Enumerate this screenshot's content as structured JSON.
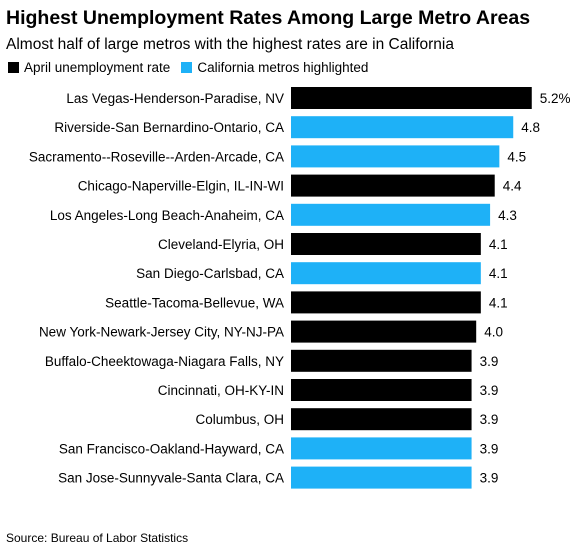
{
  "title": "Highest Unemployment Rates Among Large Metro Areas",
  "subtitle": "Almost half of large metros with the highest rates are in California",
  "legend": [
    {
      "label": "April unemployment rate",
      "color": "#000000"
    },
    {
      "label": "California metros highlighted",
      "color": "#1eb1f7"
    }
  ],
  "source": "Source: Bureau of Labor Statistics",
  "chart_data": {
    "type": "bar",
    "orientation": "horizontal",
    "value_suffix_first": "%",
    "xlim": [
      0,
      5.2
    ],
    "grid": false,
    "legend_position": "top-left",
    "colors": {
      "default": "#000000",
      "california": "#1eb1f7"
    },
    "categories": [
      "Las Vegas-Henderson-Paradise, NV",
      "Riverside-San Bernardino-Ontario, CA",
      "Sacramento--Roseville--Arden-Arcade, CA",
      "Chicago-Naperville-Elgin, IL-IN-WI",
      "Los Angeles-Long Beach-Anaheim, CA",
      "Cleveland-Elyria, OH",
      "San Diego-Carlsbad, CA",
      "Seattle-Tacoma-Bellevue, WA",
      "New York-Newark-Jersey City, NY-NJ-PA",
      "Buffalo-Cheektowaga-Niagara Falls, NY",
      "Cincinnati, OH-KY-IN",
      "Columbus, OH",
      "San Francisco-Oakland-Hayward, CA",
      "San Jose-Sunnyvale-Santa Clara, CA"
    ],
    "values": [
      5.2,
      4.8,
      4.5,
      4.4,
      4.3,
      4.1,
      4.1,
      4.1,
      4.0,
      3.9,
      3.9,
      3.9,
      3.9,
      3.9
    ],
    "value_labels": [
      "5.2%",
      "4.8",
      "4.5",
      "4.4",
      "4.3",
      "4.1",
      "4.1",
      "4.1",
      "4.0",
      "3.9",
      "3.9",
      "3.9",
      "3.9",
      "3.9"
    ],
    "highlighted": [
      false,
      true,
      true,
      false,
      true,
      false,
      true,
      false,
      false,
      false,
      false,
      false,
      true,
      true
    ]
  }
}
